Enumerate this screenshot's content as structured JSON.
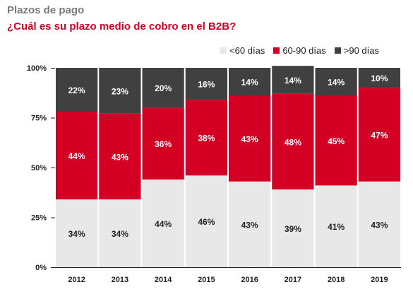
{
  "title": "Plazos de pago",
  "subtitle": "¿Cuál es su plazo medio de cobro en el B2B?",
  "colors": {
    "lt60": "#e8e8e8",
    "mid": "#d40023",
    "gt90": "#404040",
    "axis": "#222222"
  },
  "chart_data": {
    "type": "bar",
    "stacked": true,
    "categories": [
      "2012",
      "2013",
      "2014",
      "2015",
      "2016",
      "2017",
      "2018",
      "2019"
    ],
    "series": [
      {
        "name": "<60 días",
        "values": [
          34,
          34,
          44,
          46,
          43,
          39,
          41,
          43
        ]
      },
      {
        "name": "60-90 días",
        "values": [
          44,
          43,
          36,
          38,
          43,
          48,
          45,
          47
        ]
      },
      {
        "name": ">90 días",
        "values": [
          22,
          23,
          20,
          16,
          14,
          14,
          14,
          10
        ]
      }
    ],
    "labels": [
      [
        "34%",
        "34%",
        "44%",
        "46%",
        "43%",
        "39%",
        "41%",
        "43%"
      ],
      [
        "44%",
        "43%",
        "36%",
        "38%",
        "43%",
        "48%",
        "45%",
        "47%"
      ],
      [
        "22%",
        "23%",
        "20%",
        "16%",
        "14%",
        "14%",
        "14%",
        "10%"
      ]
    ],
    "yticks": [
      "0%",
      "25%",
      "50%",
      "75%",
      "100%"
    ],
    "ylim": [
      0,
      100
    ],
    "legend_position": "top-right",
    "grid": false
  }
}
